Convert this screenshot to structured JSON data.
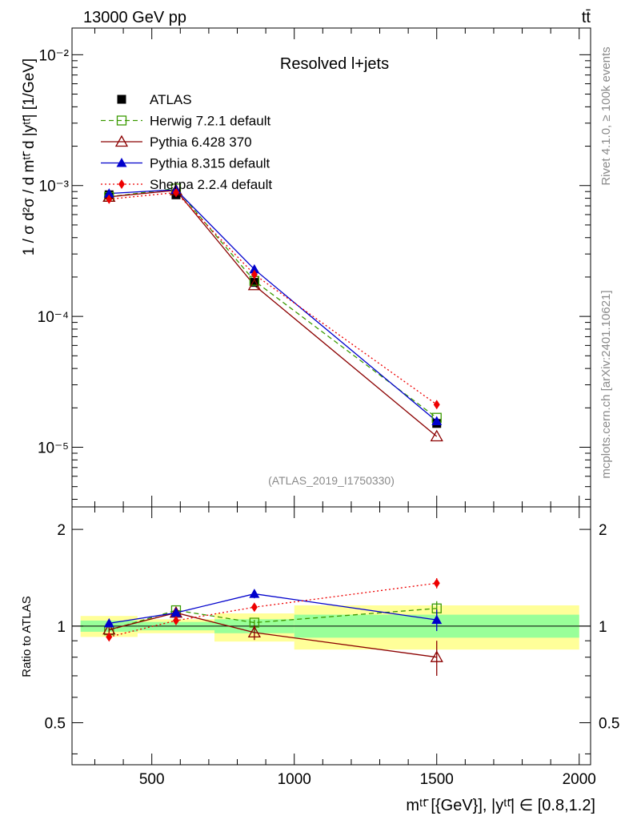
{
  "header": {
    "energy_label": "13000 GeV pp",
    "process_label": "tt̄"
  },
  "side_labels": {
    "rivet": "Rivet 4.1.0, ≥ 100k events",
    "mcplots": "mcplots.cern.ch [arXiv:2401.10621]"
  },
  "chart_data": [
    {
      "type": "line",
      "title": "Resolved l+jets",
      "analysis_tag": "(ATLAS_2019_I1750330)",
      "ylabel": "1 / σ d²σ / d mᵗᵗ̄ d |yᵗᵗ̄| [1/GeV]",
      "yscale": "log",
      "xlim": [
        220,
        2040
      ],
      "ylim": [
        3.5e-06,
        0.016
      ],
      "ytick_labels": [
        "10⁻⁵",
        "10⁻⁴",
        "10⁻³",
        "10⁻²"
      ],
      "bins": [
        [
          250,
          450
        ],
        [
          450,
          720
        ],
        [
          720,
          1000
        ],
        [
          1000,
          2000
        ]
      ],
      "x": [
        350,
        585,
        860,
        1500
      ],
      "legend_position": "top-left",
      "series": [
        {
          "name": "ATLAS",
          "key": "atlas",
          "color": "#000000",
          "marker": "square",
          "values": [
            0.00085,
            0.00085,
            0.000182,
            1.52e-05
          ]
        },
        {
          "name": "Herwig 7.2.1 default",
          "key": "herwig",
          "color": "#3a9a00",
          "marker": "open-square",
          "dash": "dashed",
          "values": [
            0.00082,
            0.00095,
            0.000187,
            1.68e-05
          ]
        },
        {
          "name": "Pythia 6.428 370",
          "key": "py6",
          "color": "#8b0000",
          "marker": "open-triangle",
          "dash": "solid",
          "values": [
            0.00082,
            0.00092,
            0.000173,
            1.21e-05
          ]
        },
        {
          "name": "Pythia 8.315 default",
          "key": "py8",
          "color": "#0000cc",
          "marker": "triangle",
          "dash": "solid",
          "values": [
            0.00087,
            0.00093,
            0.000229,
            1.58e-05
          ]
        },
        {
          "name": "Sherpa 2.2.4 default",
          "key": "sherpa",
          "color": "#ee0000",
          "marker": "diamond",
          "dash": "dotted",
          "values": [
            0.000787,
            0.000885,
            0.000209,
            2.12e-05
          ]
        }
      ]
    },
    {
      "type": "line",
      "ylabel": "Ratio to ATLAS",
      "xlabel": "mᵗᵗ̄ [{GeV}], |yᵗᵗ̄| ∈ [0.8,1.2]",
      "xlim": [
        220,
        2040
      ],
      "ylim": [
        0.37,
        2.35
      ],
      "yticks": [
        0.5,
        1,
        2
      ],
      "ytick_labels": [
        "0.5",
        "1",
        "2"
      ],
      "xticks": [
        500,
        1000,
        1500,
        2000
      ],
      "xtick_labels": [
        "500",
        "1000",
        "1500",
        "2000"
      ],
      "bands": [
        {
          "x0": 250,
          "x1": 450,
          "green": [
            0.96,
            1.04
          ],
          "yellow": [
            0.925,
            1.075
          ]
        },
        {
          "x0": 450,
          "x1": 720,
          "green": [
            0.97,
            1.03
          ],
          "yellow": [
            0.95,
            1.05
          ]
        },
        {
          "x0": 720,
          "x1": 1000,
          "green": [
            0.95,
            1.05
          ],
          "yellow": [
            0.895,
            1.095
          ]
        },
        {
          "x0": 1000,
          "x1": 2000,
          "green": [
            0.92,
            1.085
          ],
          "yellow": [
            0.845,
            1.16
          ]
        }
      ],
      "series": [
        {
          "name": "Herwig 7.2.1 default",
          "key": "herwig",
          "x": [
            350,
            585,
            860,
            1500
          ],
          "values": [
            0.97,
            1.12,
            1.025,
            1.135
          ],
          "err": [
            0.02,
            0.02,
            0.02,
            0.06
          ]
        },
        {
          "name": "Pythia 6.428 370",
          "key": "py6",
          "x": [
            350,
            585,
            860,
            1500
          ],
          "values": [
            0.975,
            1.1,
            0.955,
            0.8
          ],
          "err": [
            0.02,
            0.02,
            0.05,
            0.1
          ]
        },
        {
          "name": "Pythia 8.315 default",
          "key": "py8",
          "x": [
            350,
            585,
            860,
            1500
          ],
          "values": [
            1.02,
            1.1,
            1.26,
            1.045
          ],
          "err": [
            0.02,
            0.02,
            0.04,
            0.08
          ]
        },
        {
          "name": "Sherpa 2.2.4 default",
          "key": "sherpa",
          "x": [
            350,
            585,
            860,
            1500
          ],
          "values": [
            0.925,
            1.04,
            1.145,
            1.36
          ],
          "err": [
            0.01,
            0.01,
            0.03,
            0.05
          ]
        }
      ]
    }
  ]
}
